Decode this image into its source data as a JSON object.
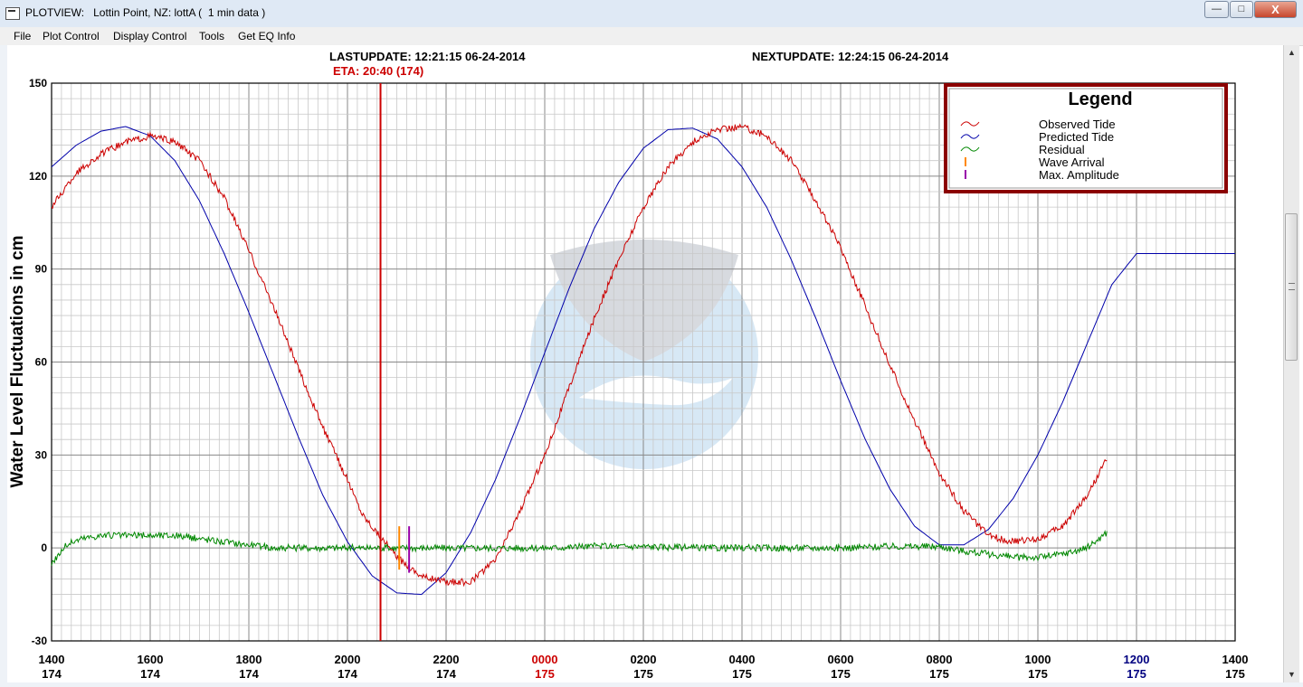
{
  "window": {
    "title": "PLOTVIEW:   Lottin Point, NZ: lottA (  1 min data )",
    "minimize_glyph": "—",
    "maximize_glyph": "□",
    "close_glyph": "X"
  },
  "menu": [
    "File",
    "Plot Control",
    "Display Control",
    "Tools",
    "Get EQ Info"
  ],
  "header": {
    "lastupdate": "LASTUPDATE: 12:21:15 06-24-2014",
    "nextupdate": "NEXTUPDATE: 12:24:15 06-24-2014",
    "eta": "ETA: 20:40 (174)"
  },
  "chart_data": {
    "type": "line",
    "ylabel": "Water Level Fluctuations in cm",
    "ylim": [
      -30,
      150
    ],
    "yticks": [
      -30,
      0,
      30,
      60,
      90,
      120,
      150
    ],
    "x_hours_range": [
      14,
      38
    ],
    "x_ticks": [
      {
        "time": "1400",
        "day": "174",
        "color": "#000000"
      },
      {
        "time": "1600",
        "day": "174",
        "color": "#000000"
      },
      {
        "time": "1800",
        "day": "174",
        "color": "#000000"
      },
      {
        "time": "2000",
        "day": "174",
        "color": "#000000"
      },
      {
        "time": "2200",
        "day": "174",
        "color": "#000000"
      },
      {
        "time": "0000",
        "day": "175",
        "color": "#cc0000"
      },
      {
        "time": "0200",
        "day": "175",
        "color": "#000000"
      },
      {
        "time": "0400",
        "day": "175",
        "color": "#000000"
      },
      {
        "time": "0600",
        "day": "175",
        "color": "#000000"
      },
      {
        "time": "0800",
        "day": "175",
        "color": "#000000"
      },
      {
        "time": "1000",
        "day": "175",
        "color": "#000000"
      },
      {
        "time": "1200",
        "day": "175",
        "color": "#000080"
      },
      {
        "time": "1400",
        "day": "175",
        "color": "#000000"
      }
    ],
    "grid": true,
    "legend": {
      "title": "Legend",
      "placement": "top-right",
      "entries": [
        {
          "label": "Observed Tide",
          "color": "#cc0000",
          "marker": "wave"
        },
        {
          "label": "Predicted Tide",
          "color": "#0000aa",
          "marker": "wave"
        },
        {
          "label": "Residual",
          "color": "#008800",
          "marker": "wave"
        },
        {
          "label": "Wave Arrival",
          "color": "#ff8800",
          "marker": "tick"
        },
        {
          "label": "Max. Amplitude",
          "color": "#9900aa",
          "marker": "tick"
        }
      ]
    },
    "series": [
      {
        "name": "Predicted Tide",
        "color": "#0000aa",
        "x": [
          14.0,
          14.5,
          15.0,
          15.5,
          16.0,
          16.5,
          17.0,
          17.5,
          18.0,
          18.5,
          19.0,
          19.5,
          20.0,
          20.5,
          21.0,
          21.5,
          22.0,
          22.5,
          23.0,
          23.5,
          24.0,
          24.5,
          25.0,
          25.5,
          26.0,
          26.5,
          27.0,
          27.5,
          28.0,
          28.5,
          29.0,
          29.5,
          30.0,
          30.5,
          31.0,
          31.5,
          32.0,
          32.5,
          33.0,
          33.5,
          34.0,
          34.5,
          35.0,
          35.5,
          36.0,
          36.5,
          37.0,
          37.5,
          38.0
        ],
        "y": [
          123,
          130,
          134.5,
          136,
          133,
          125,
          112,
          95,
          76,
          56,
          36,
          17,
          2,
          -9,
          -14.5,
          -15,
          -8,
          5,
          22,
          42,
          63,
          84,
          103,
          118,
          129,
          135,
          135.5,
          132,
          123,
          110,
          93,
          74,
          54,
          35,
          19,
          7,
          1,
          1,
          6,
          16,
          30,
          47,
          66,
          85,
          95,
          95,
          95,
          95,
          95
        ]
      },
      {
        "name": "Observed Tide",
        "color": "#cc0000",
        "x": [
          14.0,
          14.5,
          15.0,
          15.5,
          16.0,
          16.5,
          17.0,
          17.5,
          18.0,
          18.5,
          19.0,
          19.5,
          20.0,
          20.3,
          20.6,
          21.0,
          21.5,
          22.0,
          22.5,
          23.0,
          23.5,
          24.0,
          24.5,
          25.0,
          25.5,
          26.0,
          26.5,
          27.0,
          27.5,
          28.0,
          28.5,
          29.0,
          29.5,
          30.0,
          30.5,
          31.0,
          31.5,
          32.0,
          32.5,
          33.0,
          33.5,
          34.0,
          34.5,
          35.0,
          35.4
        ],
        "y": [
          110,
          121,
          127,
          131,
          133,
          131,
          125,
          113,
          96,
          78,
          58,
          39,
          22,
          11,
          5,
          -3,
          -9,
          -11,
          -11,
          -4,
          12,
          30,
          52,
          74,
          93,
          110,
          123,
          131,
          135,
          136,
          133,
          125,
          112,
          97,
          78,
          59,
          41,
          24,
          12,
          4,
          2,
          3,
          7,
          17,
          29
        ]
      },
      {
        "name": "Residual",
        "color": "#008800",
        "x": [
          14.0,
          14.3,
          14.6,
          15.0,
          15.5,
          16.0,
          16.5,
          17.0,
          17.5,
          18.0,
          18.5,
          19.0,
          19.5,
          20.0,
          20.5,
          21.0,
          21.5,
          22.0,
          22.5,
          23.0,
          23.5,
          24.0,
          25.0,
          26.0,
          27.0,
          28.0,
          29.0,
          30.0,
          31.0,
          32.0,
          32.5,
          33.0,
          33.5,
          34.0,
          34.5,
          35.0,
          35.4
        ],
        "y": [
          -5,
          1,
          3,
          4,
          4,
          4,
          4,
          3,
          2,
          1,
          0,
          0,
          0,
          0,
          0,
          0,
          0,
          0,
          0,
          0,
          0,
          0,
          0.5,
          0.5,
          0,
          0,
          0,
          0,
          0.5,
          0.5,
          -1,
          -2,
          -3,
          -3,
          -2,
          0,
          5
        ]
      }
    ],
    "markers": {
      "eta_hour": 20.67,
      "wave_arrival": {
        "hour": 21.05,
        "y_top": 7,
        "y_bottom": -7
      },
      "max_amplitude": {
        "hour": 21.25,
        "y_top": 7,
        "y_bottom": -8
      }
    }
  }
}
